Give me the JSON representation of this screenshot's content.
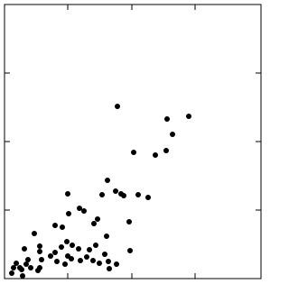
{
  "chart_data": {
    "type": "scatter",
    "color": "#000000",
    "xlim": [
      0,
      284
    ],
    "ylim": [
      0,
      304
    ],
    "xticks": [
      70,
      141,
      211
    ],
    "yticks": [
      76,
      152,
      228
    ],
    "x": [
      125,
      180,
      204,
      186,
      179,
      167,
      143,
      114,
      70,
      123,
      129,
      132,
      148,
      159,
      108,
      83,
      88,
      71,
      56,
      64,
      103,
      99,
      138,
      113,
      33,
      22,
      39,
      69,
      75,
      82,
      63,
      56,
      39,
      94,
      101,
      111,
      139,
      26,
      41,
      58,
      70,
      74,
      84,
      98,
      115,
      13,
      24,
      29,
      39,
      10,
      17,
      37,
      67,
      91,
      124,
      105,
      8,
      19,
      20,
      116,
      51
    ],
    "values": [
      191,
      177,
      180,
      160,
      142,
      137,
      140,
      109,
      94,
      97,
      94,
      92,
      93,
      90,
      93,
      78,
      75,
      72,
      59,
      57,
      66,
      61,
      63,
      47,
      50,
      33,
      36,
      41,
      37,
      33,
      35,
      29,
      30,
      32,
      37,
      27,
      31,
      21,
      21,
      19,
      25,
      22,
      20,
      20,
      19,
      17,
      16,
      12,
      12,
      12,
      12,
      9,
      16,
      24,
      16,
      17,
      6,
      10,
      3,
      11,
      25
    ]
  }
}
